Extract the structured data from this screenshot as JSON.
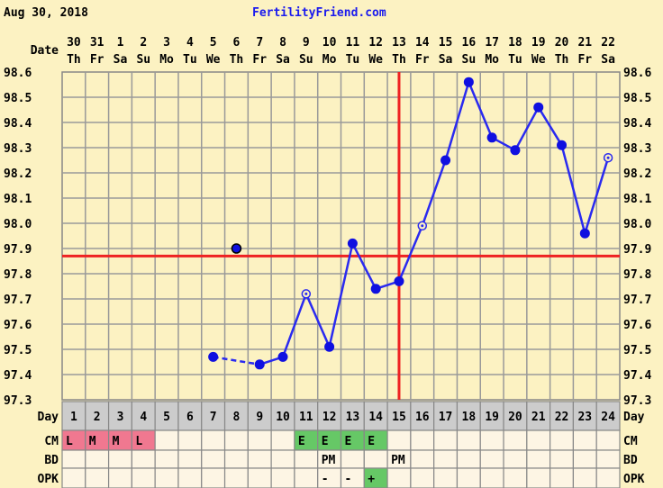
{
  "header": {
    "date": "Aug 30, 2018",
    "site": "FertilityFriend.com"
  },
  "colors": {
    "background": "#fcf2c2",
    "temp_line": "#2a2af0",
    "coverline": "#ee2222",
    "ovulation_line": "#ee2222",
    "cm_menstrual": "#f07890",
    "cm_eggwhite": "#66c866",
    "opk_positive": "#66c866",
    "day_row": "#cccccc",
    "cell": "#fdf5e4"
  },
  "chart_data": {
    "type": "line",
    "row_labels": {
      "date": "Date",
      "day": "Day",
      "cm": "CM",
      "bd": "BD",
      "opk": "OPK"
    },
    "dates": [
      "30",
      "31",
      "1",
      "2",
      "3",
      "4",
      "5",
      "6",
      "7",
      "8",
      "9",
      "10",
      "11",
      "12",
      "13",
      "14",
      "15",
      "16",
      "17",
      "18",
      "19",
      "20",
      "21",
      "22"
    ],
    "weekdays": [
      "Th",
      "Fr",
      "Sa",
      "Su",
      "Mo",
      "Tu",
      "We",
      "Th",
      "Fr",
      "Sa",
      "Su",
      "Mo",
      "Tu",
      "We",
      "Th",
      "Fr",
      "Sa",
      "Su",
      "Mo",
      "Tu",
      "We",
      "Th",
      "Fr",
      "Sa"
    ],
    "days": [
      "1",
      "2",
      "3",
      "4",
      "5",
      "6",
      "7",
      "8",
      "9",
      "10",
      "11",
      "12",
      "13",
      "14",
      "15",
      "16",
      "17",
      "18",
      "19",
      "20",
      "21",
      "22",
      "23",
      "24"
    ],
    "ylim": [
      97.3,
      98.6
    ],
    "yticks": [
      "98.6",
      "98.5",
      "98.4",
      "98.3",
      "98.2",
      "98.1",
      "98.0",
      "97.9",
      "97.8",
      "97.7",
      "97.6",
      "97.5",
      "97.4",
      "97.3"
    ],
    "temps": [
      null,
      null,
      null,
      null,
      null,
      null,
      97.47,
      97.9,
      97.44,
      97.47,
      97.72,
      97.51,
      97.92,
      97.74,
      97.77,
      97.99,
      98.25,
      98.56,
      98.34,
      98.29,
      98.46,
      98.31,
      97.96,
      98.26
    ],
    "excluded_days": [
      8
    ],
    "open_marker_days": [
      11,
      16,
      24
    ],
    "dashed_segments": [
      [
        7,
        9
      ]
    ],
    "coverline": 97.87,
    "ovulation_day": 15,
    "grid": true,
    "cm": [
      "L",
      "M",
      "M",
      "L",
      "",
      "",
      "",
      "",
      "",
      "",
      "E",
      "E",
      "E",
      "E",
      "",
      "",
      "",
      "",
      "",
      "",
      "",
      "",
      "",
      ""
    ],
    "bd": [
      "",
      "",
      "",
      "",
      "",
      "",
      "",
      "",
      "",
      "",
      "",
      "PM",
      "",
      "",
      "PM",
      "",
      "",
      "",
      "",
      "",
      "",
      "",
      "",
      ""
    ],
    "opk": [
      "",
      "",
      "",
      "",
      "",
      "",
      "",
      "",
      "",
      "",
      "",
      "-",
      "-",
      "+",
      "",
      "",
      "",
      "",
      "",
      "",
      "",
      "",
      "",
      ""
    ]
  }
}
